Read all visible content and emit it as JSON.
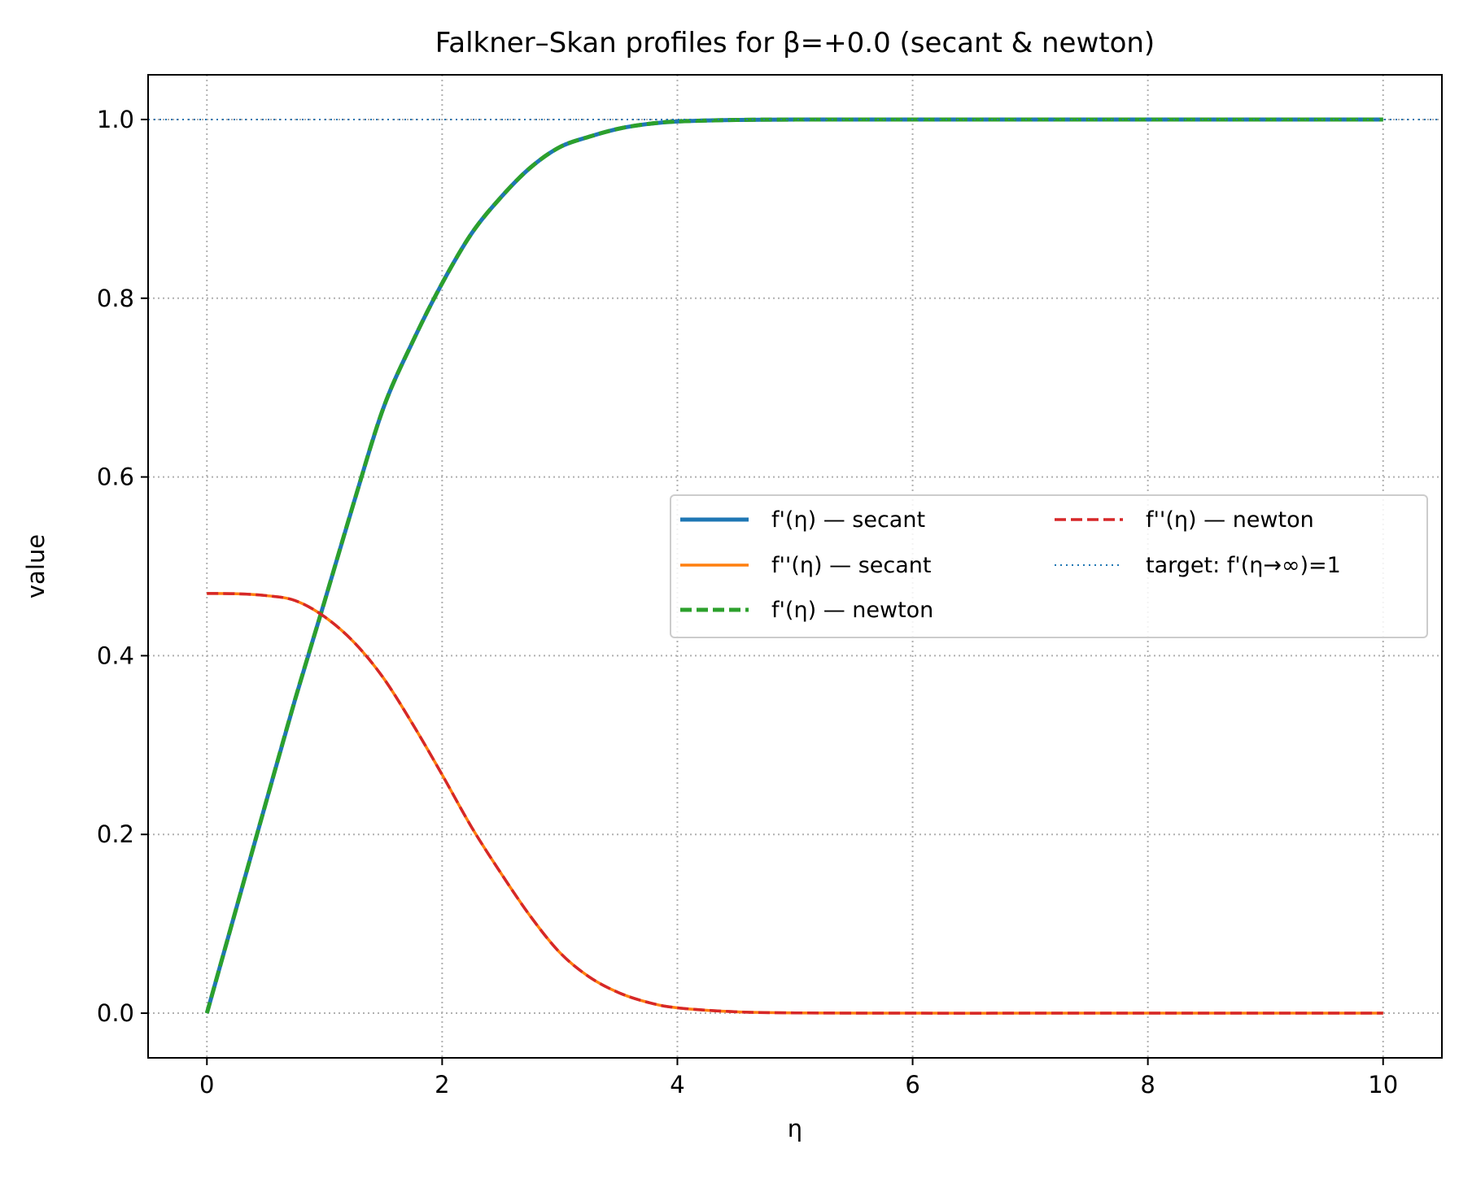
{
  "chart_data": {
    "type": "line",
    "title": "Falkner–Skan profiles for β=+0.0 (secant & newton)",
    "xlabel": "η",
    "ylabel": "value",
    "xlim": [
      -0.5,
      10.5
    ],
    "ylim": [
      -0.05,
      1.05
    ],
    "xticks": [
      0,
      2,
      4,
      6,
      8,
      10
    ],
    "xtick_labels": [
      "0",
      "2",
      "4",
      "6",
      "8",
      "10"
    ],
    "yticks": [
      0.0,
      0.2,
      0.4,
      0.6,
      0.8,
      1.0
    ],
    "ytick_labels": [
      "0.0",
      "0.2",
      "0.4",
      "0.6",
      "0.8",
      "1.0"
    ],
    "grid": true,
    "legend_position": "center-right",
    "legend_columns": 2,
    "x": [
      0,
      0.25,
      0.5,
      0.75,
      1.0,
      1.25,
      1.5,
      1.75,
      2.0,
      2.25,
      2.5,
      2.75,
      3.0,
      3.25,
      3.5,
      3.75,
      4.0,
      4.5,
      5.0,
      6.0,
      7.0,
      8.0,
      9.0,
      10.0
    ],
    "series": [
      {
        "name": "f'(η) — secant",
        "color": "#1f77b4",
        "style": "solid",
        "width": "thick",
        "values": [
          0.0,
          0.1174,
          0.2348,
          0.3511,
          0.4606,
          0.5717,
          0.677,
          0.7515,
          0.8167,
          0.8724,
          0.913,
          0.9461,
          0.9691,
          0.9807,
          0.9897,
          0.995,
          0.9978,
          0.9995,
          0.9999,
          1.0,
          1.0,
          1.0,
          1.0,
          1.0
        ]
      },
      {
        "name": "f''(η) — secant",
        "color": "#ff7f0e",
        "style": "solid",
        "width": "medium",
        "values": [
          0.4696,
          0.4693,
          0.4673,
          0.4617,
          0.4436,
          0.4151,
          0.3752,
          0.3233,
          0.2668,
          0.2082,
          0.1566,
          0.1085,
          0.0679,
          0.0406,
          0.023,
          0.0121,
          0.006,
          0.0015,
          0.0003,
          0.0,
          0.0,
          0.0,
          0.0,
          0.0
        ]
      },
      {
        "name": "f'(η) — newton",
        "color": "#2ca02c",
        "style": "dashed",
        "width": "thick",
        "values": [
          0.0,
          0.1174,
          0.2348,
          0.3511,
          0.4606,
          0.5717,
          0.677,
          0.7515,
          0.8167,
          0.8724,
          0.913,
          0.9461,
          0.9691,
          0.9807,
          0.9897,
          0.995,
          0.9978,
          0.9995,
          0.9999,
          1.0,
          1.0,
          1.0,
          1.0,
          1.0
        ]
      },
      {
        "name": "f''(η) — newton",
        "color": "#d62728",
        "style": "dashed",
        "width": "medium",
        "values": [
          0.4696,
          0.4693,
          0.4673,
          0.4617,
          0.4436,
          0.4151,
          0.3752,
          0.3233,
          0.2668,
          0.2082,
          0.1566,
          0.1085,
          0.0679,
          0.0406,
          0.023,
          0.0121,
          0.006,
          0.0015,
          0.0003,
          0.0,
          0.0,
          0.0,
          0.0,
          0.0
        ]
      }
    ],
    "reference_lines": [
      {
        "name": "target: f'(η→∞)=1",
        "orientation": "horizontal",
        "y": 1.0,
        "color": "#1f77b4",
        "style": "dotted"
      }
    ]
  }
}
